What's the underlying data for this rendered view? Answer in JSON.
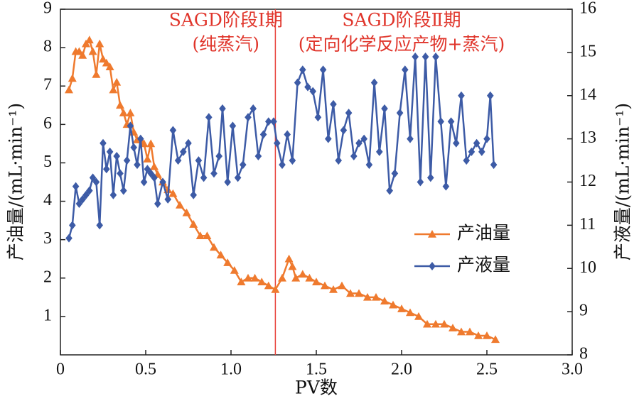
{
  "chart_data": {
    "type": "line",
    "xlabel": "PV数",
    "ylabel": "产油量/(mL·min⁻¹)",
    "y2label": "产液量/(mL·min⁻¹)",
    "xlim": [
      0,
      3.0
    ],
    "xticks": [
      0,
      0.5,
      {
        "value": 1.0,
        "label": "1.0"
      },
      1.5,
      {
        "value": 2.0,
        "label": "2.0"
      },
      2.5,
      {
        "value": 3.0,
        "label": "3.0"
      }
    ],
    "ylim": [
      0,
      9
    ],
    "yticks": [
      1,
      2,
      3,
      4,
      5,
      6,
      7,
      8,
      9
    ],
    "y2lim": [
      8,
      16
    ],
    "y2ticks": [
      8,
      9,
      10,
      11,
      12,
      13,
      14,
      15,
      16
    ],
    "legend": "lower right",
    "vline": {
      "x": 1.26,
      "color": "#e8413a"
    },
    "annotations": [
      {
        "text": "SAGD阶段Ⅰ期",
        "x": 0.97
      },
      {
        "text": "(纯蒸汽)",
        "x": 0.97
      },
      {
        "text": "SAGD阶段Ⅱ期",
        "x": 2.0
      },
      {
        "text": "(定向化学反应产物+蒸汽)",
        "x": 2.0
      }
    ],
    "series": [
      {
        "name": "产油量",
        "color": "#ef7a2e",
        "marker": "triangle",
        "x": [
          0.05,
          0.07,
          0.09,
          0.11,
          0.13,
          0.15,
          0.17,
          0.19,
          0.21,
          0.23,
          0.25,
          0.27,
          0.29,
          0.31,
          0.33,
          0.35,
          0.37,
          0.39,
          0.41,
          0.43,
          0.45,
          0.47,
          0.49,
          0.51,
          0.53,
          0.55,
          0.57,
          0.6,
          0.63,
          0.66,
          0.7,
          0.74,
          0.78,
          0.82,
          0.86,
          0.9,
          0.94,
          0.98,
          1.02,
          1.06,
          1.1,
          1.14,
          1.18,
          1.22,
          1.26,
          1.3,
          1.34,
          1.36,
          1.38,
          1.42,
          1.46,
          1.5,
          1.55,
          1.6,
          1.65,
          1.7,
          1.75,
          1.8,
          1.85,
          1.9,
          1.95,
          2.0,
          2.05,
          2.1,
          2.15,
          2.2,
          2.25,
          2.3,
          2.35,
          2.4,
          2.45,
          2.5,
          2.55
        ],
        "values": [
          6.9,
          7.2,
          7.9,
          7.9,
          7.8,
          8.1,
          8.2,
          7.9,
          7.3,
          8.1,
          7.7,
          7.6,
          7.5,
          6.9,
          7.1,
          6.5,
          6.3,
          6.0,
          6.3,
          5.8,
          5.6,
          5.6,
          5.5,
          5.1,
          5.5,
          4.9,
          4.7,
          4.5,
          4.3,
          4.2,
          3.9,
          3.7,
          3.4,
          3.1,
          3.1,
          2.8,
          2.6,
          2.4,
          2.2,
          1.9,
          2.0,
          2.0,
          1.9,
          1.8,
          1.7,
          2.0,
          2.5,
          2.3,
          2.0,
          2.1,
          2.0,
          1.9,
          1.8,
          1.7,
          1.8,
          1.6,
          1.6,
          1.5,
          1.5,
          1.4,
          1.3,
          1.2,
          1.1,
          1.0,
          0.8,
          0.8,
          0.8,
          0.7,
          0.6,
          0.6,
          0.5,
          0.5,
          0.4
        ]
      },
      {
        "name": "产液量",
        "color": "#3d5ba6",
        "marker": "diamond",
        "axis": "y2",
        "x": [
          0.05,
          0.07,
          0.09,
          0.11,
          0.13,
          0.15,
          0.17,
          0.19,
          0.21,
          0.23,
          0.25,
          0.27,
          0.29,
          0.31,
          0.33,
          0.35,
          0.37,
          0.39,
          0.41,
          0.43,
          0.45,
          0.47,
          0.49,
          0.51,
          0.53,
          0.55,
          0.57,
          0.6,
          0.63,
          0.66,
          0.69,
          0.72,
          0.75,
          0.78,
          0.81,
          0.84,
          0.87,
          0.9,
          0.93,
          0.95,
          0.98,
          1.01,
          1.04,
          1.07,
          1.1,
          1.13,
          1.16,
          1.19,
          1.22,
          1.25,
          1.27,
          1.3,
          1.33,
          1.36,
          1.39,
          1.42,
          1.45,
          1.48,
          1.51,
          1.54,
          1.57,
          1.6,
          1.63,
          1.66,
          1.69,
          1.72,
          1.75,
          1.78,
          1.81,
          1.84,
          1.87,
          1.9,
          1.93,
          1.96,
          1.99,
          2.02,
          2.05,
          2.08,
          2.11,
          2.14,
          2.17,
          2.2,
          2.23,
          2.26,
          2.29,
          2.32,
          2.35,
          2.38,
          2.41,
          2.44,
          2.47,
          2.5,
          2.52,
          2.54
        ],
        "values": [
          10.7,
          11.0,
          11.9,
          11.5,
          11.6,
          11.7,
          11.8,
          12.1,
          12.0,
          11.0,
          12.9,
          12.3,
          12.7,
          11.7,
          12.6,
          12.2,
          11.8,
          12.5,
          13.3,
          12.8,
          12.4,
          13.0,
          12.0,
          12.3,
          12.2,
          12.1,
          11.5,
          12.0,
          11.6,
          13.2,
          12.5,
          12.7,
          12.9,
          11.7,
          12.5,
          12.1,
          13.5,
          12.2,
          12.6,
          13.7,
          12.0,
          13.3,
          12.1,
          12.4,
          13.5,
          13.7,
          12.6,
          13.1,
          13.4,
          13.4,
          12.9,
          12.4,
          13.1,
          12.5,
          14.3,
          14.6,
          14.2,
          14.1,
          13.5,
          14.6,
          13.0,
          13.8,
          12.5,
          13.2,
          13.6,
          12.6,
          12.9,
          13.0,
          12.4,
          14.3,
          12.7,
          13.7,
          11.8,
          12.2,
          13.6,
          14.6,
          13.0,
          14.9,
          12.0,
          14.9,
          12.1,
          14.9,
          13.4,
          11.9,
          13.4,
          12.9,
          14.0,
          12.5,
          12.7,
          12.9,
          12.7,
          13.0,
          14.0,
          12.4
        ]
      }
    ]
  }
}
